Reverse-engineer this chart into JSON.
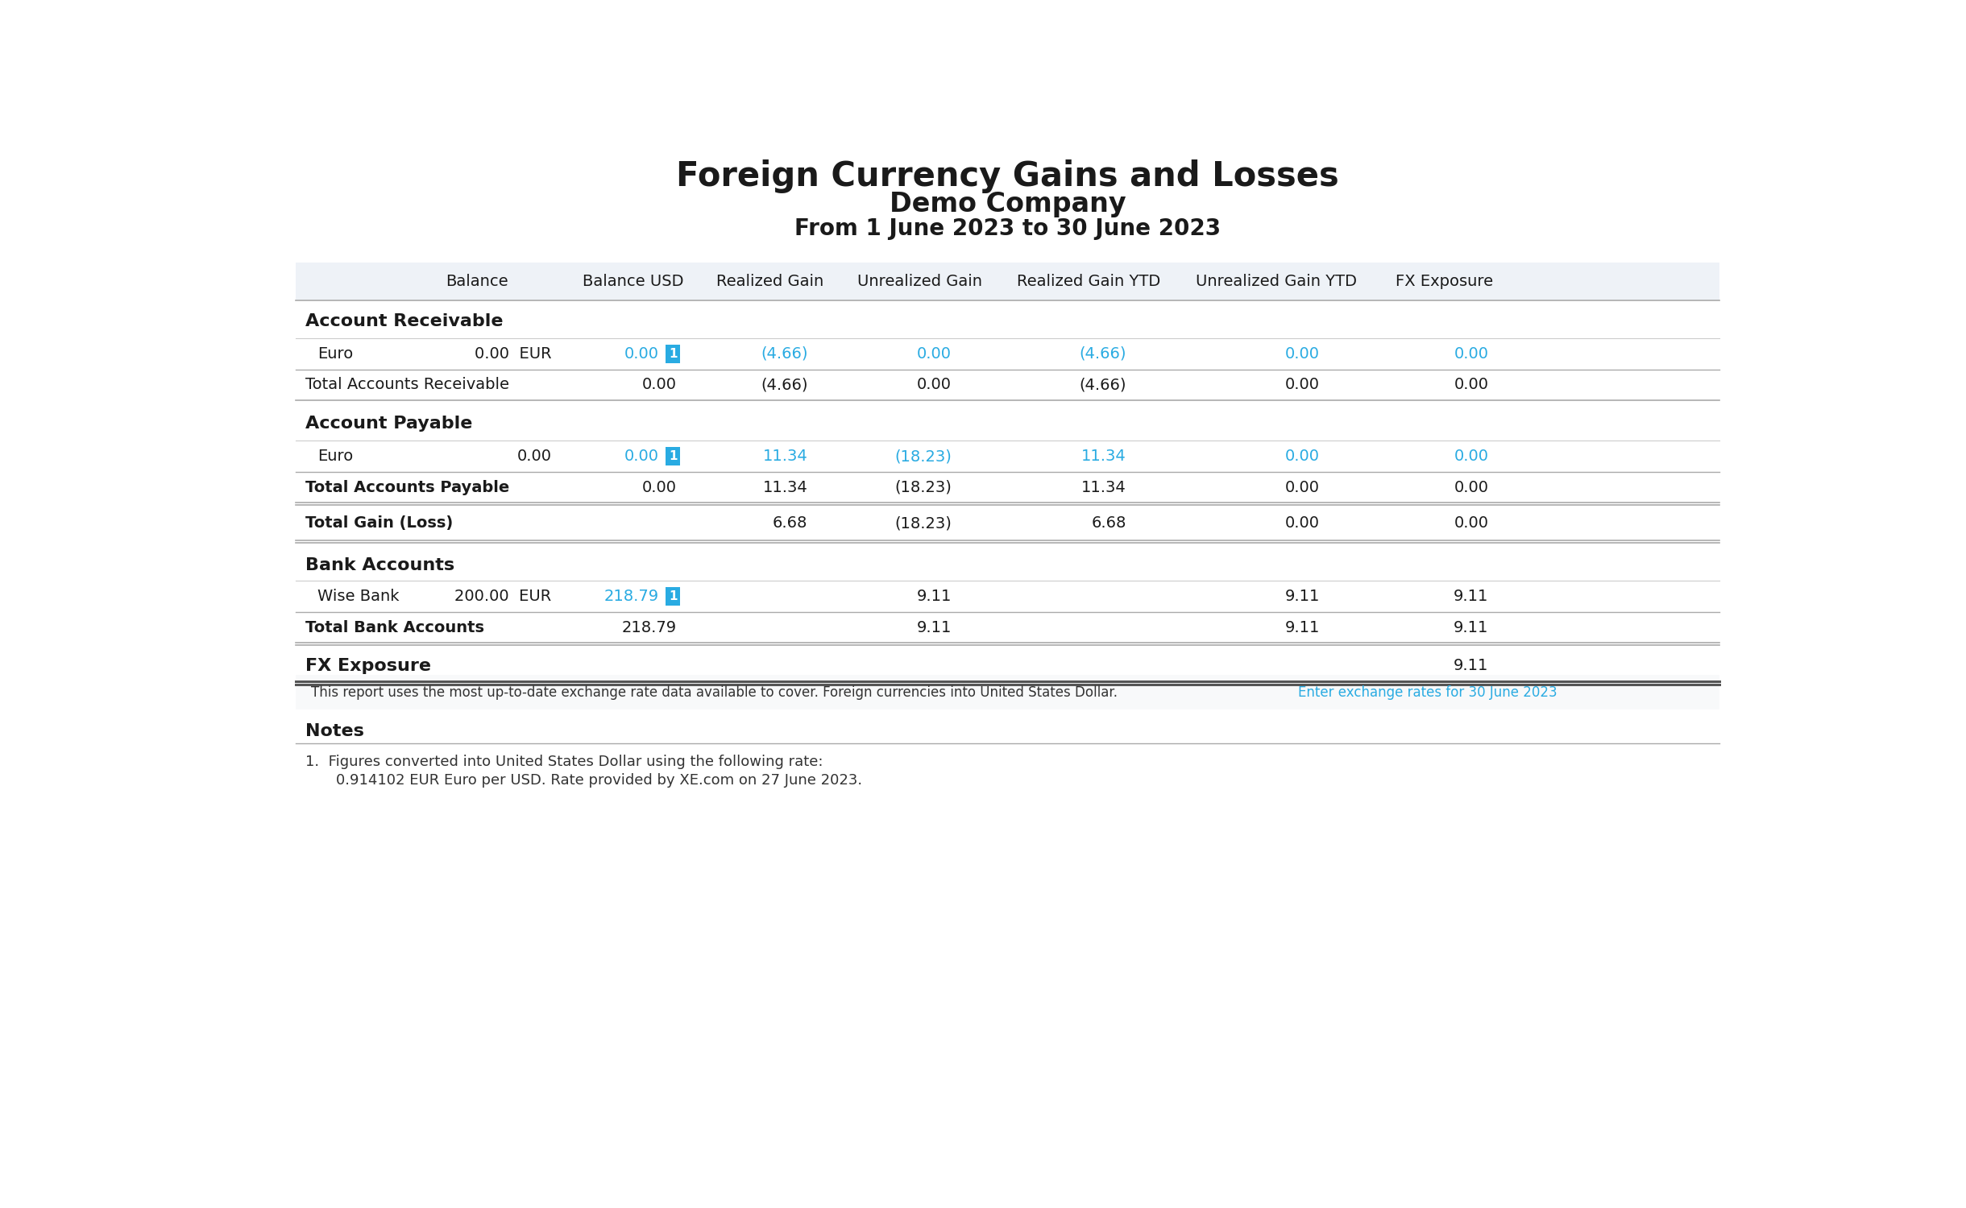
{
  "title_line1": "Foreign Currency Gains and Losses",
  "title_line2": "Demo Company",
  "title_line3": "From 1 June 2023 to 30 June 2023",
  "header_bg": "#eef2f7",
  "cyan": "#29abe2",
  "dark": "#1a1a1a",
  "note_text": "This report uses the most up-to-date exchange rate data available to cover. Foreign currencies into United States Dollar.",
  "note_link": "Enter exchange rates for 30 June 2023",
  "notes_line1": "1.  Figures converted into United States Dollar using the following rate:",
  "notes_line2": "    0.914102 EUR Euro per USD. Rate provided by XE.com on 27 June 2023."
}
